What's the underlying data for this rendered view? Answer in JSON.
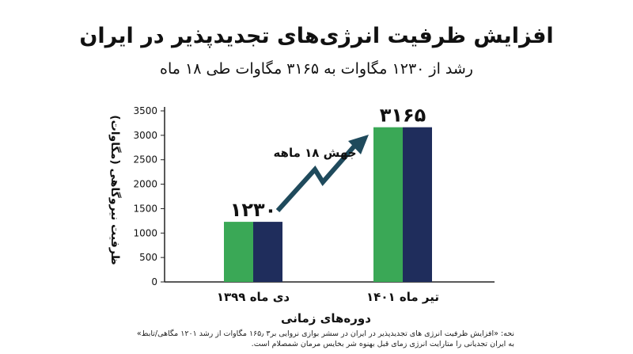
{
  "chart_data": {
    "type": "bar",
    "title": "افزایش ظرفیت انرژی‌های تجدیدپذیر در ایران",
    "subtitle": "رشد از ۱۲۳۰ مگاوات به ۳۱۶۵ مگاوات طی ۱۸ ماه",
    "xlabel": "دوره‌های زمانی",
    "ylabel": "ظرفیت نیروگاهی (مگاوات)",
    "categories": [
      "دی ماه ۱۳۹۹",
      "تیر ماه ۱۴۰۱"
    ],
    "values": [
      1230,
      3165
    ],
    "value_labels": [
      "۱۲۳۰",
      "۳۱۶۵"
    ],
    "ylim": [
      0,
      3500
    ],
    "yticks": [
      0,
      500,
      1000,
      1500,
      2000,
      2500,
      3000,
      3500
    ],
    "ytick_labels": [
      "0",
      "500",
      "1000",
      "1500",
      "2000",
      "2500",
      "3000",
      "3500"
    ],
    "annotation": "جهش ۱۸ ماهه",
    "grid": false,
    "colors": {
      "bar_left": "#3aa856",
      "bar_right": "#1f2d5c",
      "arrow": "#1f4a5c",
      "axis": "#222222"
    }
  },
  "note": "نحه: «افزایش ظرفیت انرژی های تجدیدپذیر در ایران در سشر بوازی نروایی بر۳ ۱۶۵٫ مگاوات از رشد ۱۲۰۱ مگاهی/تابط» به ایران تجدیانی را متارایت انرژی زمای قبل بهنوه شر بخایس مرمان شمصلام است."
}
